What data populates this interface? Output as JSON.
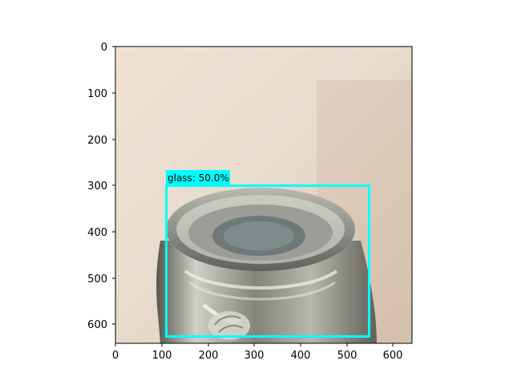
{
  "figure": {
    "x_ticks": [
      "0",
      "100",
      "200",
      "300",
      "400",
      "500",
      "600"
    ],
    "y_ticks": [
      "0",
      "100",
      "200",
      "300",
      "400",
      "500",
      "600"
    ]
  },
  "image": {
    "content": "glass-bottle-neck-photo",
    "background_colors": [
      "#efe2d6",
      "#e6d8c9",
      "#d8c7b3"
    ],
    "bottle_colors": [
      "#6f706a",
      "#a9aaa2",
      "#d7d6cf",
      "#3c3d38"
    ]
  },
  "detection": {
    "label_text": "glass: 50.0%",
    "class": "glass",
    "score": 0.5,
    "box_color": "#00ffff",
    "box_image_coords": {
      "x1": 110,
      "y1": 300,
      "x2": 550,
      "y2": 628
    }
  }
}
